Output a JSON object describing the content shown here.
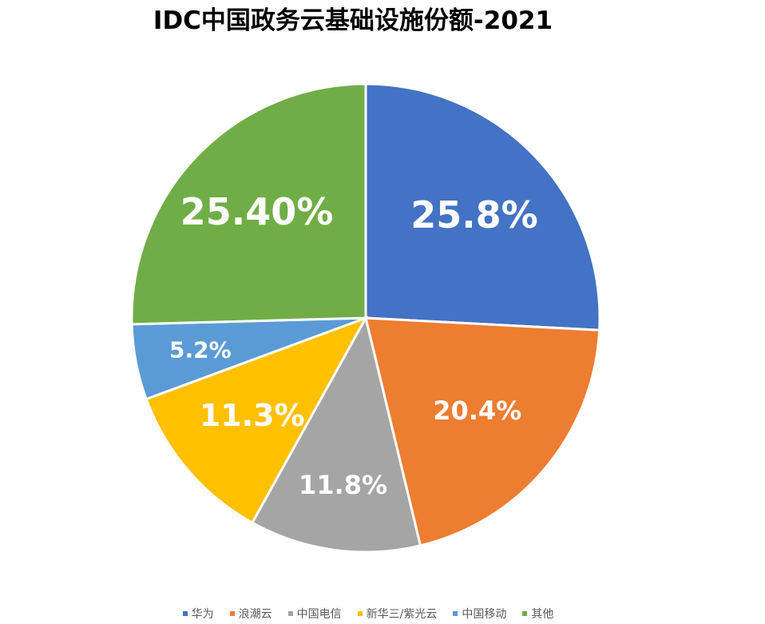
{
  "chart_data": {
    "type": "pie",
    "title": "IDC中国政务云基础设施份额-2021",
    "slices": [
      {
        "name": "华为",
        "value": 25.8,
        "label": "25.8%",
        "color": "#4472C4"
      },
      {
        "name": "浪潮云",
        "value": 20.4,
        "label": "20.4%",
        "color": "#ED7D31"
      },
      {
        "name": "中国电信",
        "value": 11.8,
        "label": "11.8%",
        "color": "#A5A5A5"
      },
      {
        "name": "新华三/紫光云",
        "value": 11.3,
        "label": "11.3%",
        "color": "#FFC000"
      },
      {
        "name": "中国移动",
        "value": 5.2,
        "label": "5.2%",
        "color": "#5B9BD5"
      },
      {
        "name": "其他",
        "value": 25.4,
        "label": "25.40%",
        "color": "#70AD47"
      }
    ],
    "legend_position": "bottom"
  }
}
